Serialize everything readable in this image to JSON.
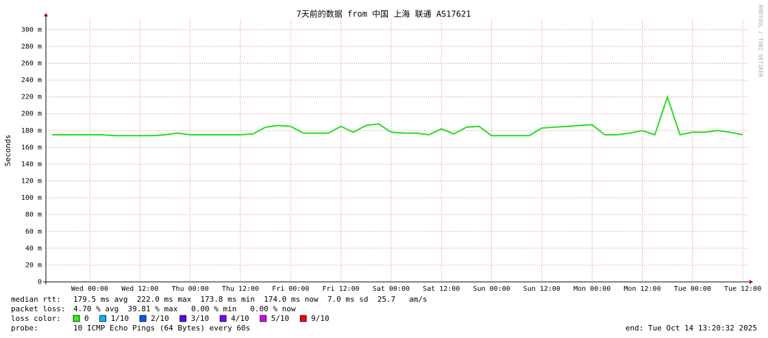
{
  "chart_data": {
    "type": "line",
    "title": "7天前的数据 from 中国 上海 联通 AS17621",
    "y_label": "Seconds",
    "watermark": "RRDTOOL / TOBI OETIKER",
    "categories": [
      null,
      null,
      null,
      "Wed 00:00",
      null,
      null,
      null,
      "Wed 12:00",
      null,
      null,
      null,
      "Thu 00:00",
      null,
      null,
      null,
      "Thu 12:00",
      null,
      null,
      null,
      "Fri 00:00",
      null,
      null,
      null,
      "Fri 12:00",
      null,
      null,
      null,
      "Sat 00:00",
      null,
      null,
      null,
      "Sat 12:00",
      null,
      null,
      null,
      "Sun 00:00",
      null,
      null,
      null,
      "Sun 12:00",
      null,
      null,
      null,
      "Mon 00:00",
      null,
      null,
      null,
      "Mon 12:00",
      null,
      null,
      null,
      "Tue 00:00",
      null,
      null,
      null,
      "Tue 12:00"
    ],
    "values": [
      0.175,
      0.175,
      0.175,
      0.175,
      0.175,
      0.174,
      0.174,
      0.174,
      0.174,
      0.175,
      0.177,
      0.175,
      0.175,
      0.175,
      0.175,
      0.175,
      0.176,
      0.184,
      0.186,
      0.185,
      0.177,
      0.177,
      0.177,
      0.185,
      0.178,
      0.186,
      0.188,
      0.178,
      0.177,
      0.177,
      0.175,
      0.182,
      0.176,
      0.184,
      0.185,
      0.174,
      0.174,
      0.174,
      0.174,
      0.183,
      0.184,
      0.185,
      0.186,
      0.187,
      0.175,
      0.175,
      0.177,
      0.18,
      0.175,
      0.22,
      0.175,
      0.178,
      0.178,
      0.18,
      0.178,
      0.175
    ],
    "color": "#22dd22",
    "ylim": [
      0,
      0.3125
    ],
    "yticks": [
      0,
      {
        "value": 0.02,
        "label": "20 m"
      },
      {
        "value": 0.04,
        "label": "40 m"
      },
      {
        "value": 0.06,
        "label": "60 m"
      },
      {
        "value": 0.08,
        "label": "80 m"
      },
      {
        "value": 0.1,
        "label": "100 m"
      },
      {
        "value": 0.12,
        "label": "120 m"
      },
      {
        "value": 0.14,
        "label": "140 m"
      },
      {
        "value": 0.16,
        "label": "160 m"
      },
      {
        "value": 0.18,
        "label": "180 m"
      },
      {
        "value": 0.2,
        "label": "200 m"
      },
      {
        "value": 0.22,
        "label": "220 m"
      },
      {
        "value": 0.24,
        "label": "240 m"
      },
      {
        "value": 0.26,
        "label": "260 m"
      },
      {
        "value": 0.28,
        "label": "280 m"
      },
      {
        "value": 0.3,
        "label": "300 m"
      }
    ],
    "grid": true
  },
  "footer": {
    "median_rtt": {
      "label": "median rtt:",
      "text": "179.5 ms avg  222.0 ms max  173.8 ms min  174.0 ms now  7.0 ms sd  25.7   am/s"
    },
    "packet_loss": {
      "label": "packet loss:",
      "text": "4.70 % avg  39.81 % max   0.00 % min   0.00 % now"
    },
    "loss_color": {
      "label": "loss color:",
      "items": [
        {
          "name": "0",
          "color": "#26ff00"
        },
        {
          "name": "1/10",
          "color": "#00b8ff"
        },
        {
          "name": "2/10",
          "color": "#0059ff"
        },
        {
          "name": "3/10",
          "color": "#5e00ff"
        },
        {
          "name": "4/10",
          "color": "#7e00ff"
        },
        {
          "name": "5/10",
          "color": "#dd00ff"
        },
        {
          "name": "9/10",
          "color": "#ff0000"
        }
      ]
    },
    "probe": {
      "label": "probe:",
      "text": "10 ICMP Echo Pings (64 Bytes) every 60s"
    },
    "end": "end: Tue Oct 14 13:20:32 2025"
  }
}
